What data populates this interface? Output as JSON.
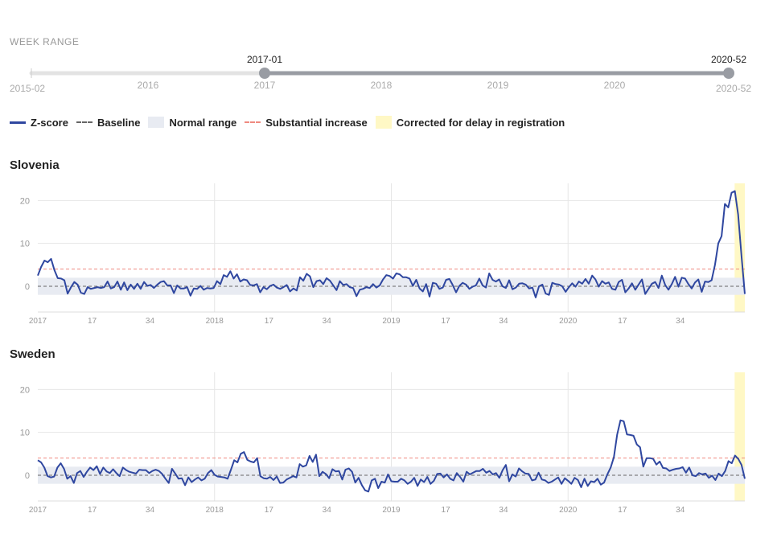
{
  "week_range": {
    "title": "WEEK RANGE",
    "min_label": "2015-02",
    "max_label": "2020-52",
    "selected_start": "2017-01",
    "selected_end": "2020-52",
    "year_ticks": [
      "2016",
      "2017",
      "2018",
      "2019",
      "2020"
    ]
  },
  "legend": {
    "zscore": "Z-score",
    "baseline": "Baseline",
    "normal_range": "Normal range",
    "substantial": "Substantial increase",
    "corrected": "Corrected for delay in registration"
  },
  "colors": {
    "line": "#2f47a0",
    "baseline": "#666666",
    "normal_band": "#e8ebf2",
    "substantial": "#ef8a80",
    "corrected": "#fff8c5",
    "grid": "#e6e6e6"
  },
  "chart_data": [
    {
      "type": "line",
      "title": "Slovenia",
      "x_tick_labels": [
        "2017",
        "17",
        "34",
        "2018",
        "17",
        "34",
        "2019",
        "17",
        "34",
        "2020",
        "17",
        "34"
      ],
      "ylim": [
        -6,
        24
      ],
      "y_ticks": [
        0,
        10,
        20
      ],
      "baseline": 0,
      "normal_range": [
        -2,
        2
      ],
      "substantial_increase": 4,
      "x_range_weeks": [
        0,
        208
      ],
      "corrected_weeks": [
        205,
        208
      ],
      "series": [
        {
          "values": [
            2.5,
            4.5,
            6.0,
            5.6,
            6.4,
            3.8,
            1.9,
            1.8,
            1.4,
            -1.7,
            -0.2,
            1.0,
            0.4,
            -1.5,
            -1.8,
            -0.2,
            -0.6,
            -0.4,
            -0.2,
            -0.4,
            -0.2,
            1.1,
            -0.5,
            -0.2,
            1.1,
            -0.8,
            0.9,
            -0.9,
            0.4,
            -0.6,
            0.6,
            -0.6,
            1.0,
            0.1,
            0.3,
            -0.4,
            0.4,
            1.0,
            1.2,
            0.2,
            0.2,
            -1.6,
            0.2,
            -0.5,
            -0.5,
            -0.2,
            -2.2,
            -0.5,
            -0.6,
            0.1,
            -0.8,
            -0.4,
            -0.5,
            -0.4,
            1.2,
            0.5,
            2.6,
            2.2,
            3.5,
            1.8,
            2.8,
            1.1,
            1.6,
            1.4,
            0.3,
            0.2,
            0.5,
            -1.4,
            -0.2,
            -0.7,
            0.1,
            0.4,
            -0.3,
            -0.6,
            -0.2,
            0.3,
            -1.2,
            -0.5,
            -1.0,
            2.1,
            1.3,
            2.9,
            2.3,
            -0.2,
            1.2,
            1.4,
            0.5,
            1.9,
            1.3,
            0.2,
            -0.9,
            1.2,
            0.3,
            0.5,
            -0.2,
            -0.4,
            -2.3,
            -0.8,
            -0.6,
            -0.2,
            -0.4,
            0.5,
            -0.3,
            0.2,
            1.6,
            2.6,
            2.4,
            1.8,
            3.0,
            2.8,
            2.1,
            2.1,
            1.8,
            0.1,
            1.5,
            -0.5,
            -1.2,
            0.5,
            -2.4,
            0.8,
            0.6,
            -0.6,
            -0.3,
            1.5,
            1.7,
            0.3,
            -1.4,
            0.1,
            0.8,
            0.4,
            -0.6,
            -0.1,
            0.2,
            1.8,
            0.2,
            -0.3,
            3.0,
            1.5,
            1.1,
            1.6,
            0.0,
            -0.4,
            1.4,
            -0.7,
            -0.3,
            0.6,
            0.7,
            0.4,
            -0.5,
            -0.3,
            -2.6,
            0.0,
            0.4,
            -1.7,
            -2.0,
            0.8,
            0.5,
            0.4,
            0.0,
            -1.3,
            -0.2,
            0.7,
            -0.1,
            1.1,
            0.6,
            1.7,
            0.6,
            2.5,
            1.6,
            -0.1,
            1.2,
            0.6,
            0.9,
            -0.6,
            -0.8,
            1.0,
            1.5,
            -1.4,
            -0.5,
            0.7,
            -0.8,
            0.4,
            1.6,
            -1.8,
            -0.6,
            0.6,
            1.0,
            -0.4,
            2.5,
            0.3,
            -0.8,
            0.5,
            2.2,
            -0.1,
            2.0,
            1.8,
            0.5,
            -0.5,
            0.9,
            1.6,
            -1.3,
            1.1,
            1.0,
            1.4,
            5.0,
            10.0,
            11.7,
            19.2,
            18.4,
            21.8,
            22.2,
            16.7,
            7.0,
            -1.8
          ]
        }
      ]
    },
    {
      "type": "line",
      "title": "Sweden",
      "x_tick_labels": [
        "2017",
        "17",
        "34",
        "2018",
        "17",
        "34",
        "2019",
        "17",
        "34",
        "2020",
        "17",
        "34"
      ],
      "ylim": [
        -6,
        24
      ],
      "y_ticks": [
        0,
        10,
        20
      ],
      "baseline": 0,
      "normal_range": [
        -2,
        2
      ],
      "substantial_increase": 4,
      "x_range_weeks": [
        0,
        208
      ],
      "corrected_weeks": [
        205,
        208
      ],
      "series": [
        {
          "values": [
            3.5,
            3.0,
            1.8,
            -0.2,
            -0.5,
            -0.3,
            1.8,
            2.8,
            1.5,
            -0.8,
            -0.2,
            -1.8,
            0.5,
            1.0,
            -0.4,
            0.8,
            1.8,
            1.2,
            2.1,
            0.3,
            1.8,
            0.9,
            0.5,
            1.4,
            0.5,
            -0.2,
            1.8,
            1.2,
            0.8,
            0.6,
            0.4,
            1.3,
            1.2,
            1.2,
            0.5,
            1.0,
            1.3,
            1.0,
            0.3,
            -0.8,
            -1.8,
            1.5,
            0.4,
            -0.8,
            -0.7,
            -2.3,
            -0.5,
            -1.6,
            -1.0,
            -0.5,
            -1.2,
            -0.8,
            0.5,
            1.2,
            0.1,
            -0.3,
            -0.4,
            -0.5,
            -0.8,
            1.3,
            3.5,
            3.0,
            5.0,
            5.4,
            3.6,
            3.2,
            3.0,
            4.0,
            -0.2,
            -0.7,
            -0.8,
            -0.4,
            -1.1,
            -0.3,
            -1.8,
            -1.7,
            -1.0,
            -0.6,
            -0.2,
            -0.5,
            2.6,
            2.0,
            2.3,
            4.5,
            3.1,
            4.8,
            -0.2,
            0.8,
            0.3,
            -0.7,
            1.4,
            0.9,
            1.0,
            -1.0,
            1.3,
            1.6,
            0.8,
            -1.7,
            -0.6,
            -2.3,
            -3.5,
            -3.8,
            -1.2,
            -0.8,
            -3.0,
            -1.5,
            -1.7,
            0.2,
            -1.4,
            -1.5,
            -1.5,
            -0.8,
            -1.2,
            -2.0,
            -1.5,
            -0.6,
            -2.5,
            -1.0,
            -1.6,
            -0.4,
            -2.0,
            -1.3,
            0.3,
            0.4,
            -0.5,
            0.2,
            -0.8,
            -1.2,
            0.5,
            -0.4,
            -1.5,
            0.8,
            0.2,
            0.6,
            1.0,
            1.0,
            1.5,
            0.6,
            1.0,
            0.2,
            0.5,
            -0.6,
            1.2,
            2.4,
            -1.4,
            0.2,
            -0.3,
            1.6,
            0.9,
            0.4,
            0.3,
            -1.2,
            -1.0,
            0.6,
            -1.0,
            -1.2,
            -1.8,
            -1.5,
            -1.0,
            -0.5,
            -2.0,
            -0.7,
            -1.3,
            -2.0,
            -0.6,
            -1.1,
            -2.8,
            -0.8,
            -2.5,
            -1.4,
            -1.6,
            -0.8,
            -2.2,
            -1.7,
            0.2,
            1.8,
            4.2,
            9.5,
            12.8,
            12.6,
            9.5,
            9.4,
            9.2,
            7.2,
            6.5,
            2.0,
            4.0,
            4.0,
            3.8,
            2.5,
            3.2,
            1.7,
            1.6,
            1.0,
            1.3,
            1.5,
            1.6,
            1.9,
            0.6,
            1.8,
            0.0,
            -0.2,
            0.5,
            0.2,
            0.4,
            -0.6,
            -0.1,
            -1.1,
            0.4,
            -0.2,
            1.0,
            3.3,
            2.8,
            4.6,
            3.8,
            2.4,
            -0.8
          ]
        }
      ]
    }
  ]
}
